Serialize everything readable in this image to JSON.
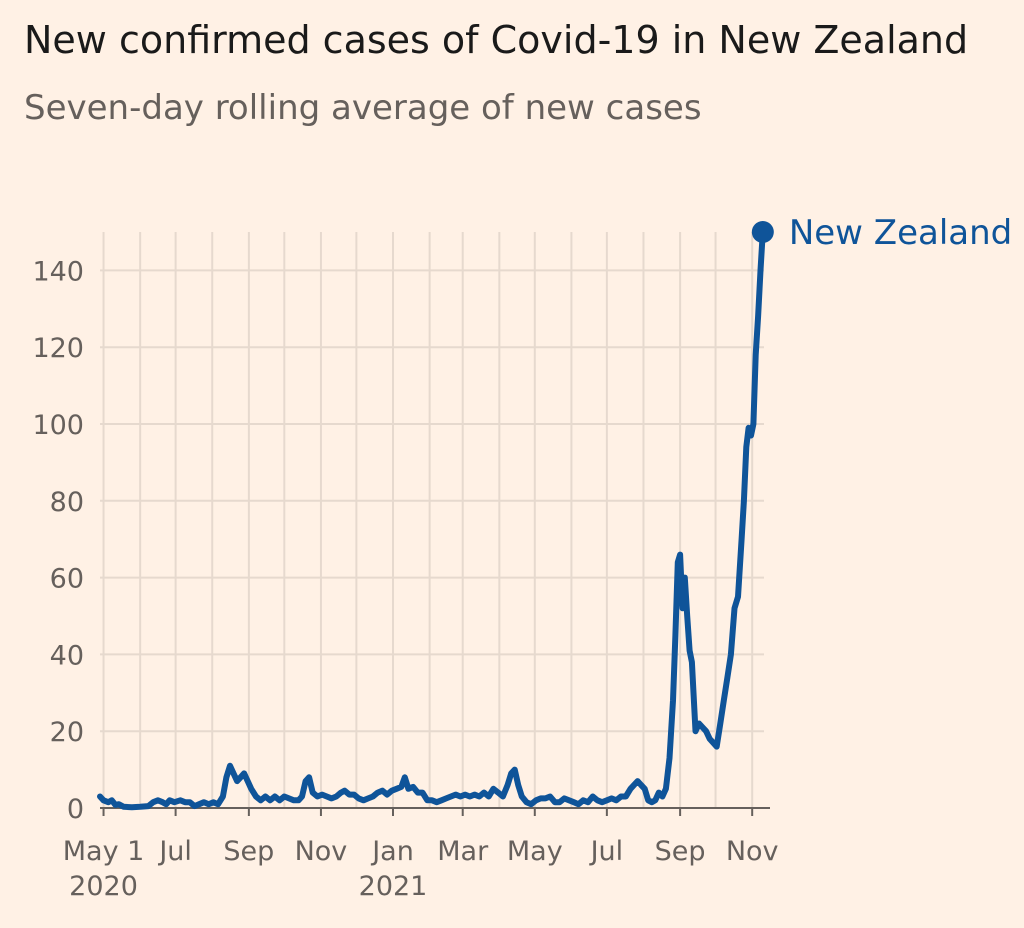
{
  "title": "New confirmed cases of Covid-19 in New Zealand",
  "subtitle": "Seven-day rolling average of new cases",
  "colors": {
    "background": "#fff1e5",
    "line": "#0f5499",
    "grid": "#e6d9ce",
    "axis": "#66605c"
  },
  "chart_data": {
    "type": "line",
    "title": "New confirmed cases of Covid-19 in New Zealand",
    "subtitle": "Seven-day rolling average of new cases",
    "xlabel": "",
    "ylabel": "",
    "x_range": [
      "2020-04-28",
      "2021-11-11"
    ],
    "ylim": [
      0,
      150
    ],
    "y_ticks": [
      0,
      20,
      40,
      60,
      80,
      100,
      120,
      140
    ],
    "x_ticks": [
      {
        "date": "2020-05-01",
        "label": "May 1",
        "year": "2020"
      },
      {
        "date": "2020-07-01",
        "label": "Jul",
        "year": ""
      },
      {
        "date": "2020-09-01",
        "label": "Sep",
        "year": ""
      },
      {
        "date": "2020-11-01",
        "label": "Nov",
        "year": ""
      },
      {
        "date": "2021-01-01",
        "label": "Jan",
        "year": "2021"
      },
      {
        "date": "2021-03-01",
        "label": "Mar",
        "year": ""
      },
      {
        "date": "2021-05-01",
        "label": "May",
        "year": ""
      },
      {
        "date": "2021-07-01",
        "label": "Jul",
        "year": ""
      },
      {
        "date": "2021-09-01",
        "label": "Sep",
        "year": ""
      },
      {
        "date": "2021-11-01",
        "label": "Nov",
        "year": ""
      }
    ],
    "grid": true,
    "series": [
      {
        "name": "New Zealand",
        "color": "#0f5499",
        "points": [
          [
            "2020-04-28",
            3
          ],
          [
            "2020-05-01",
            2
          ],
          [
            "2020-05-05",
            1.5
          ],
          [
            "2020-05-08",
            2
          ],
          [
            "2020-05-11",
            0.8
          ],
          [
            "2020-05-14",
            1
          ],
          [
            "2020-05-18",
            0.3
          ],
          [
            "2020-05-25",
            0.2
          ],
          [
            "2020-06-01",
            0.3
          ],
          [
            "2020-06-08",
            0.5
          ],
          [
            "2020-06-12",
            1.5
          ],
          [
            "2020-06-16",
            2
          ],
          [
            "2020-06-20",
            1.5
          ],
          [
            "2020-06-23",
            1
          ],
          [
            "2020-06-26",
            2
          ],
          [
            "2020-06-30",
            1.5
          ],
          [
            "2020-07-05",
            2
          ],
          [
            "2020-07-09",
            1.5
          ],
          [
            "2020-07-13",
            1.5
          ],
          [
            "2020-07-17",
            0.5
          ],
          [
            "2020-07-21",
            1
          ],
          [
            "2020-07-25",
            1.5
          ],
          [
            "2020-07-29",
            1
          ],
          [
            "2020-08-02",
            1.5
          ],
          [
            "2020-08-06",
            1
          ],
          [
            "2020-08-10",
            3
          ],
          [
            "2020-08-13",
            8
          ],
          [
            "2020-08-16",
            11
          ],
          [
            "2020-08-19",
            9
          ],
          [
            "2020-08-22",
            7
          ],
          [
            "2020-08-25",
            8
          ],
          [
            "2020-08-28",
            9
          ],
          [
            "2020-08-31",
            7
          ],
          [
            "2020-09-03",
            5
          ],
          [
            "2020-09-07",
            3
          ],
          [
            "2020-09-11",
            2
          ],
          [
            "2020-09-15",
            3
          ],
          [
            "2020-09-19",
            2
          ],
          [
            "2020-09-23",
            3
          ],
          [
            "2020-09-27",
            2
          ],
          [
            "2020-10-01",
            3
          ],
          [
            "2020-10-05",
            2.5
          ],
          [
            "2020-10-09",
            2
          ],
          [
            "2020-10-13",
            2
          ],
          [
            "2020-10-16",
            3
          ],
          [
            "2020-10-19",
            7
          ],
          [
            "2020-10-22",
            8
          ],
          [
            "2020-10-25",
            4
          ],
          [
            "2020-10-29",
            3
          ],
          [
            "2020-11-02",
            3.5
          ],
          [
            "2020-11-06",
            3
          ],
          [
            "2020-11-10",
            2.5
          ],
          [
            "2020-11-14",
            3
          ],
          [
            "2020-11-18",
            4
          ],
          [
            "2020-11-21",
            4.5
          ],
          [
            "2020-11-25",
            3.5
          ],
          [
            "2020-11-29",
            3.5
          ],
          [
            "2020-12-03",
            2.5
          ],
          [
            "2020-12-07",
            2
          ],
          [
            "2020-12-11",
            2.5
          ],
          [
            "2020-12-15",
            3
          ],
          [
            "2020-12-19",
            4
          ],
          [
            "2020-12-23",
            4.5
          ],
          [
            "2020-12-27",
            3.5
          ],
          [
            "2020-12-31",
            4.5
          ],
          [
            "2021-01-04",
            5
          ],
          [
            "2021-01-08",
            5.5
          ],
          [
            "2021-01-11",
            8
          ],
          [
            "2021-01-14",
            5
          ],
          [
            "2021-01-18",
            5.5
          ],
          [
            "2021-01-22",
            4
          ],
          [
            "2021-01-26",
            4
          ],
          [
            "2021-01-30",
            2
          ],
          [
            "2021-02-03",
            2
          ],
          [
            "2021-02-07",
            1.5
          ],
          [
            "2021-02-11",
            2
          ],
          [
            "2021-02-15",
            2.5
          ],
          [
            "2021-02-19",
            3
          ],
          [
            "2021-02-23",
            3.5
          ],
          [
            "2021-02-27",
            3
          ],
          [
            "2021-03-03",
            3.5
          ],
          [
            "2021-03-07",
            3
          ],
          [
            "2021-03-11",
            3.5
          ],
          [
            "2021-03-15",
            3
          ],
          [
            "2021-03-19",
            4
          ],
          [
            "2021-03-23",
            3
          ],
          [
            "2021-03-27",
            5
          ],
          [
            "2021-03-31",
            4
          ],
          [
            "2021-04-04",
            3
          ],
          [
            "2021-04-08",
            6
          ],
          [
            "2021-04-11",
            9
          ],
          [
            "2021-04-14",
            10
          ],
          [
            "2021-04-17",
            6
          ],
          [
            "2021-04-20",
            3
          ],
          [
            "2021-04-24",
            1.5
          ],
          [
            "2021-04-28",
            1
          ],
          [
            "2021-05-02",
            2
          ],
          [
            "2021-05-06",
            2.5
          ],
          [
            "2021-05-10",
            2.5
          ],
          [
            "2021-05-14",
            3
          ],
          [
            "2021-05-18",
            1.5
          ],
          [
            "2021-05-22",
            1.5
          ],
          [
            "2021-05-26",
            2.5
          ],
          [
            "2021-05-30",
            2
          ],
          [
            "2021-06-03",
            1.5
          ],
          [
            "2021-06-07",
            1
          ],
          [
            "2021-06-11",
            2
          ],
          [
            "2021-06-15",
            1.5
          ],
          [
            "2021-06-19",
            3
          ],
          [
            "2021-06-23",
            2
          ],
          [
            "2021-06-27",
            1.5
          ],
          [
            "2021-07-01",
            2
          ],
          [
            "2021-07-05",
            2.5
          ],
          [
            "2021-07-09",
            2
          ],
          [
            "2021-07-13",
            3
          ],
          [
            "2021-07-17",
            3
          ],
          [
            "2021-07-21",
            5
          ],
          [
            "2021-07-24",
            6
          ],
          [
            "2021-07-27",
            7
          ],
          [
            "2021-07-30",
            6
          ],
          [
            "2021-08-02",
            5
          ],
          [
            "2021-08-05",
            2
          ],
          [
            "2021-08-08",
            1.5
          ],
          [
            "2021-08-11",
            2
          ],
          [
            "2021-08-14",
            4
          ],
          [
            "2021-08-17",
            3
          ],
          [
            "2021-08-20",
            5
          ],
          [
            "2021-08-23",
            13
          ],
          [
            "2021-08-26",
            28
          ],
          [
            "2021-08-28",
            45
          ],
          [
            "2021-08-30",
            64
          ],
          [
            "2021-09-01",
            66
          ],
          [
            "2021-09-03",
            52
          ],
          [
            "2021-09-05",
            60
          ],
          [
            "2021-09-07",
            50
          ],
          [
            "2021-09-09",
            41
          ],
          [
            "2021-09-11",
            38
          ],
          [
            "2021-09-14",
            20
          ],
          [
            "2021-09-17",
            22
          ],
          [
            "2021-09-20",
            21
          ],
          [
            "2021-09-23",
            20
          ],
          [
            "2021-09-26",
            18
          ],
          [
            "2021-09-29",
            17
          ],
          [
            "2021-10-02",
            16
          ],
          [
            "2021-10-05",
            22
          ],
          [
            "2021-10-08",
            28
          ],
          [
            "2021-10-11",
            34
          ],
          [
            "2021-10-14",
            40
          ],
          [
            "2021-10-17",
            52
          ],
          [
            "2021-10-20",
            55
          ],
          [
            "2021-10-23",
            70
          ],
          [
            "2021-10-25",
            80
          ],
          [
            "2021-10-27",
            94
          ],
          [
            "2021-10-29",
            99
          ],
          [
            "2021-10-31",
            97
          ],
          [
            "2021-11-02",
            100
          ],
          [
            "2021-11-04",
            118
          ],
          [
            "2021-11-06",
            128
          ],
          [
            "2021-11-08",
            140
          ],
          [
            "2021-11-10",
            150
          ]
        ]
      }
    ]
  }
}
